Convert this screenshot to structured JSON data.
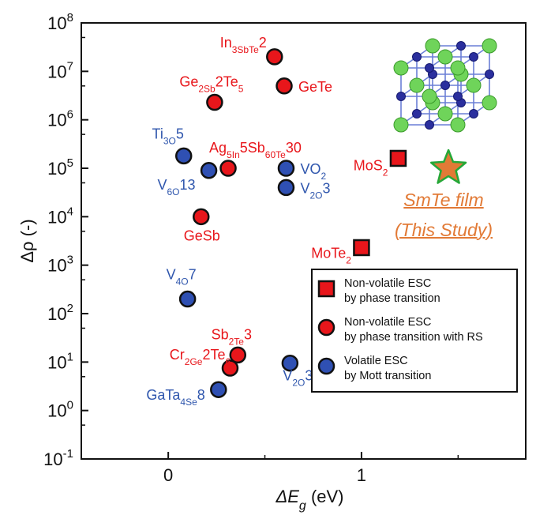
{
  "chart_data": {
    "type": "scatter",
    "title": "",
    "xlabel": "ΔE_g (eV)",
    "ylabel": "Δρ (-)",
    "xlim": [
      -0.45,
      1.85
    ],
    "ylim_log10": [
      -1,
      8
    ],
    "y_scale": "log",
    "x_ticks": [
      {
        "value": 0,
        "label": "0"
      },
      {
        "value": 1,
        "label": "1"
      }
    ],
    "y_ticks": [
      {
        "exp": -1,
        "base": "10",
        "sup": "-1"
      },
      {
        "exp": 0,
        "base": "10",
        "sup": "0"
      },
      {
        "exp": 1,
        "base": "10",
        "sup": "1"
      },
      {
        "exp": 2,
        "base": "10",
        "sup": "2"
      },
      {
        "exp": 3,
        "base": "10",
        "sup": "3"
      },
      {
        "exp": 4,
        "base": "10",
        "sup": "4"
      },
      {
        "exp": 5,
        "base": "10",
        "sup": "5"
      },
      {
        "exp": 6,
        "base": "10",
        "sup": "6"
      },
      {
        "exp": 7,
        "base": "10",
        "sup": "7"
      },
      {
        "exp": 8,
        "base": "10",
        "sup": "8"
      }
    ],
    "grid": false,
    "legend_position": "bottom-right",
    "legend": [
      {
        "marker": "square",
        "color": "#e8161b",
        "line1": "Non-volatile ESC",
        "line2": "by phase transition"
      },
      {
        "marker": "circle",
        "color": "#e8161b",
        "line1": "Non-volatile ESC",
        "line2": "by phase transition with RS"
      },
      {
        "marker": "circle",
        "color": "#2f50b3",
        "line1": "Volatile ESC",
        "line2": "by Mott transition"
      }
    ],
    "series": [
      {
        "marker": "circle",
        "color": "#e8161b",
        "points": [
          {
            "x": 0.55,
            "y": 20000000.0,
            "label": "In_3SbTe_2",
            "label_color": "#e8161b"
          },
          {
            "x": 0.6,
            "y": 5000000.0,
            "label": "GeTe",
            "label_color": "#e8161b"
          },
          {
            "x": 0.24,
            "y": 2300000.0,
            "label": "Ge_2Sb_2Te_5",
            "label_color": "#e8161b"
          },
          {
            "x": 0.31,
            "y": 100000.0,
            "label": "Ag_5In_5Sb_60Te_30",
            "label_color": "#e8161b"
          },
          {
            "x": 0.17,
            "y": 10000.0,
            "label": "GeSb",
            "label_color": "#e8161b"
          },
          {
            "x": 0.36,
            "y": 14,
            "label": "Sb_2Te_3",
            "label_color": "#e8161b"
          },
          {
            "x": 0.32,
            "y": 7.5,
            "label": "Cr_2Ge_2Te_6",
            "label_color": "#e8161b"
          }
        ]
      },
      {
        "marker": "circle",
        "color": "#2f50b3",
        "points": [
          {
            "x": 0.08,
            "y": 180000.0,
            "label": "Ti_3O_5",
            "label_color": "#2f56ad"
          },
          {
            "x": 0.21,
            "y": 90000.0,
            "label": "V_6O_13",
            "label_color": "#2f56ad"
          },
          {
            "x": 0.61,
            "y": 100000.0,
            "label": "VO_2",
            "label_color": "#2f56ad"
          },
          {
            "x": 0.61,
            "y": 40000.0,
            "label": "V_2O_3",
            "label_color": "#2f56ad"
          },
          {
            "x": 0.1,
            "y": 200,
            "label": "V_4O_7",
            "label_color": "#2f56ad"
          },
          {
            "x": 0.63,
            "y": 9.5,
            "label": "V_2O_3",
            "label_color": "#2f56ad"
          },
          {
            "x": 0.26,
            "y": 2.7,
            "label": "GaTa_4Se_8",
            "label_color": "#2f56ad"
          }
        ]
      },
      {
        "marker": "square",
        "color": "#e8161b",
        "points": [
          {
            "x": 1.19,
            "y": 160000.0,
            "label": "MoS_2",
            "label_color": "#e8161b"
          },
          {
            "x": 1.0,
            "y": 2300,
            "label": "MoTe_2",
            "label_color": "#e8161b"
          }
        ]
      },
      {
        "marker": "star",
        "color": "#e27a36",
        "edge_color": "#25a838",
        "points": [
          {
            "x": 1.45,
            "y": 100000.0
          }
        ]
      }
    ],
    "annotation": {
      "line1": "SmTe film",
      "line2": "(This Study)",
      "color": "#e27a36"
    }
  }
}
